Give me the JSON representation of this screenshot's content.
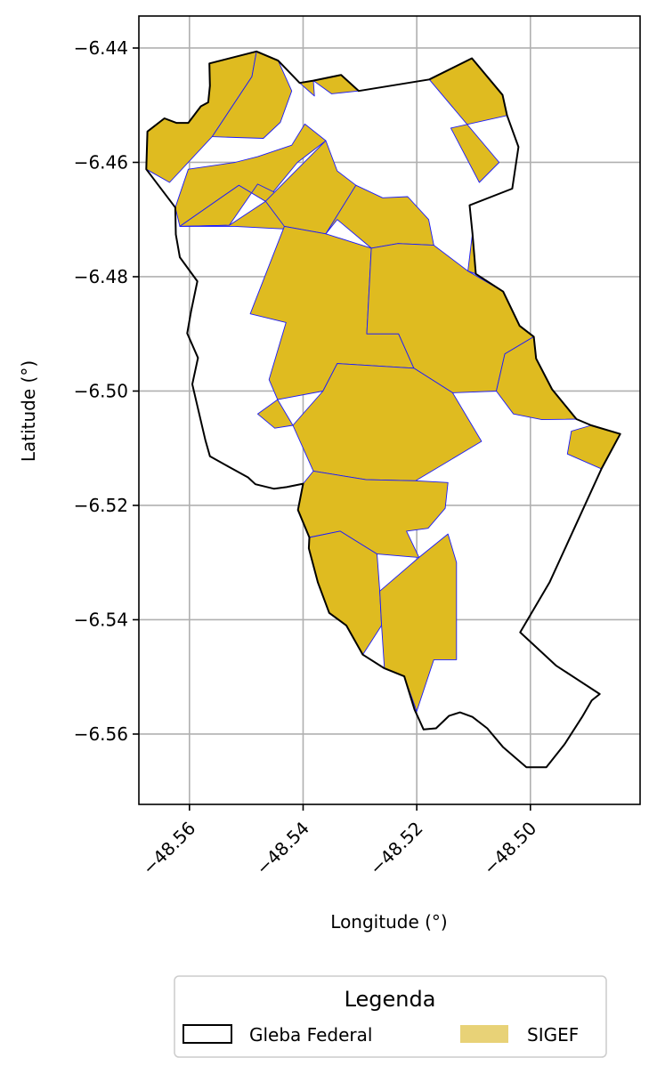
{
  "chart_data": {
    "type": "map",
    "xlabel": "Longitude (°)",
    "ylabel": "Latitude (°)",
    "xlim": [
      -48.5689,
      -48.4807
    ],
    "ylim": [
      -6.5723,
      -6.4344
    ],
    "x_ticks": [
      {
        "value": -48.56,
        "label": "−48.56"
      },
      {
        "value": -48.54,
        "label": "−48.54"
      },
      {
        "value": -48.52,
        "label": "−48.52"
      },
      {
        "value": -48.5,
        "label": "−48.50"
      }
    ],
    "y_ticks": [
      {
        "value": -6.44,
        "label": "−6.44"
      },
      {
        "value": -6.46,
        "label": "−6.46"
      },
      {
        "value": -6.48,
        "label": "−6.48"
      },
      {
        "value": -6.5,
        "label": "−6.50"
      },
      {
        "value": -6.52,
        "label": "−6.52"
      },
      {
        "value": -6.54,
        "label": "−6.54"
      },
      {
        "value": -6.56,
        "label": "−6.56"
      }
    ],
    "grid": true,
    "legend": {
      "title": "Legenda",
      "placement": "bottom-center",
      "entries": [
        {
          "label": "Gleba Federal",
          "style": "outline"
        },
        {
          "label": "SIGEF",
          "style": "fill"
        }
      ]
    },
    "colors": {
      "gleba_outline": "#000000",
      "sigef_fill": "#dfbb20",
      "sigef_edge": "#1a1aff",
      "sigef_legend_fill": "#e8d277",
      "grid": "#b0b0b0"
    },
    "gleba_federal": [
      [
        -48.5644,
        -6.4523
      ],
      [
        -48.5623,
        -6.4531
      ],
      [
        -48.5602,
        -6.4531
      ],
      [
        -48.558,
        -6.4502
      ],
      [
        -48.5567,
        -6.4495
      ],
      [
        -48.5564,
        -6.4466
      ],
      [
        -48.5565,
        -6.4427
      ],
      [
        -48.5482,
        -6.4406
      ],
      [
        -48.5444,
        -6.4422
      ],
      [
        -48.5406,
        -6.4461
      ],
      [
        -48.5382,
        -6.4457
      ],
      [
        -48.5333,
        -6.4447
      ],
      [
        -48.5302,
        -6.4475
      ],
      [
        -48.5178,
        -6.4455
      ],
      [
        -48.5103,
        -6.4418
      ],
      [
        -48.5049,
        -6.4482
      ],
      [
        -48.5041,
        -6.4518
      ],
      [
        -48.5021,
        -6.4573
      ],
      [
        -48.5032,
        -6.4646
      ],
      [
        -48.5107,
        -6.4675
      ],
      [
        -48.5102,
        -6.4724
      ],
      [
        -48.5096,
        -6.4795
      ],
      [
        -48.5048,
        -6.4826
      ],
      [
        -48.5019,
        -6.4886
      ],
      [
        -48.4994,
        -6.4905
      ],
      [
        -48.499,
        -6.4943
      ],
      [
        -48.4962,
        -6.4997
      ],
      [
        -48.4919,
        -6.5049
      ],
      [
        -48.4893,
        -6.506
      ],
      [
        -48.4842,
        -6.5075
      ],
      [
        -48.4875,
        -6.5136
      ],
      [
        -48.4966,
        -6.5334
      ],
      [
        -48.5018,
        -6.5422
      ],
      [
        -48.4955,
        -6.548
      ],
      [
        -48.4878,
        -6.553
      ],
      [
        -48.4892,
        -6.5541
      ],
      [
        -48.4909,
        -6.557
      ],
      [
        -48.494,
        -6.5618
      ],
      [
        -48.4972,
        -6.5658
      ],
      [
        -48.5007,
        -6.5658
      ],
      [
        -48.5048,
        -6.5623
      ],
      [
        -48.5076,
        -6.559
      ],
      [
        -48.5102,
        -6.557
      ],
      [
        -48.5124,
        -6.5562
      ],
      [
        -48.5143,
        -6.5568
      ],
      [
        -48.5166,
        -6.559
      ],
      [
        -48.5188,
        -6.5592
      ],
      [
        -48.5204,
        -6.5557
      ],
      [
        -48.5222,
        -6.5499
      ],
      [
        -48.5257,
        -6.5485
      ],
      [
        -48.5295,
        -6.5461
      ],
      [
        -48.5324,
        -6.541
      ],
      [
        -48.5354,
        -6.5388
      ],
      [
        -48.5374,
        -6.5335
      ],
      [
        -48.539,
        -6.5275
      ],
      [
        -48.5389,
        -6.5256
      ],
      [
        -48.5409,
        -6.5208
      ],
      [
        -48.54,
        -6.5162
      ],
      [
        -48.5429,
        -6.5168
      ],
      [
        -48.5451,
        -6.5171
      ],
      [
        -48.5484,
        -6.5163
      ],
      [
        -48.5497,
        -6.5151
      ],
      [
        -48.553,
        -6.5133
      ],
      [
        -48.5564,
        -6.5114
      ],
      [
        -48.5572,
        -6.5086
      ],
      [
        -48.5595,
        -6.4988
      ],
      [
        -48.5585,
        -6.4942
      ],
      [
        -48.5604,
        -6.4899
      ],
      [
        -48.5597,
        -6.486
      ],
      [
        -48.5586,
        -6.4808
      ],
      [
        -48.5617,
        -6.4766
      ],
      [
        -48.5624,
        -6.4726
      ],
      [
        -48.5625,
        -6.4679
      ],
      [
        -48.5676,
        -6.4612
      ],
      [
        -48.5674,
        -6.4546
      ],
      [
        -48.5644,
        -6.4523
      ]
    ],
    "sigef_parcels": [
      [
        [
          -48.5674,
          -6.4546
        ],
        [
          -48.5644,
          -6.4523
        ],
        [
          -48.5623,
          -6.4531
        ],
        [
          -48.5602,
          -6.4531
        ],
        [
          -48.558,
          -6.4502
        ],
        [
          -48.5567,
          -6.4495
        ],
        [
          -48.5564,
          -6.4466
        ],
        [
          -48.5565,
          -6.4427
        ],
        [
          -48.5482,
          -6.4406
        ],
        [
          -48.549,
          -6.445
        ],
        [
          -48.556,
          -6.4555
        ],
        [
          -48.5635,
          -6.4635
        ],
        [
          -48.5676,
          -6.4612
        ]
      ],
      [
        [
          -48.5482,
          -6.4406
        ],
        [
          -48.5444,
          -6.4422
        ],
        [
          -48.542,
          -6.4475
        ],
        [
          -48.544,
          -6.453
        ],
        [
          -48.547,
          -6.4558
        ],
        [
          -48.556,
          -6.4555
        ],
        [
          -48.549,
          -6.445
        ]
      ],
      [
        [
          -48.5625,
          -6.4679
        ],
        [
          -48.5602,
          -6.4612
        ],
        [
          -48.552,
          -6.46
        ],
        [
          -48.548,
          -6.459
        ],
        [
          -48.542,
          -6.457
        ],
        [
          -48.5397,
          -6.4533
        ],
        [
          -48.536,
          -6.4562
        ],
        [
          -48.541,
          -6.46
        ],
        [
          -48.5466,
          -6.4668
        ],
        [
          -48.5513,
          -6.464
        ],
        [
          -48.5617,
          -6.4712
        ]
      ],
      [
        [
          -48.5617,
          -6.4712
        ],
        [
          -48.5513,
          -6.464
        ],
        [
          -48.5466,
          -6.4668
        ],
        [
          -48.542,
          -6.471
        ],
        [
          -48.541,
          -6.4672
        ],
        [
          -48.548,
          -6.4638
        ],
        [
          -48.553,
          -6.471
        ],
        [
          -48.5617,
          -6.4712
        ]
      ],
      [
        [
          -48.5617,
          -6.4712
        ],
        [
          -48.553,
          -6.471
        ],
        [
          -48.5466,
          -6.4668
        ],
        [
          -48.541,
          -6.4672
        ],
        [
          -48.54,
          -6.4718
        ],
        [
          -48.546,
          -6.4715
        ],
        [
          -48.552,
          -6.4712
        ]
      ],
      [
        [
          -48.5466,
          -6.4668
        ],
        [
          -48.536,
          -6.4562
        ],
        [
          -48.534,
          -6.4615
        ],
        [
          -48.5307,
          -6.464
        ],
        [
          -48.536,
          -6.4725
        ],
        [
          -48.5433,
          -6.4712
        ],
        [
          -48.5466,
          -6.4668
        ]
      ],
      [
        [
          -48.5307,
          -6.464
        ],
        [
          -48.526,
          -6.4662
        ],
        [
          -48.5216,
          -6.466
        ],
        [
          -48.5179,
          -6.47
        ],
        [
          -48.517,
          -6.4745
        ],
        [
          -48.5233,
          -6.4742
        ],
        [
          -48.528,
          -6.475
        ],
        [
          -48.534,
          -6.47
        ],
        [
          -48.536,
          -6.4725
        ],
        [
          -48.5307,
          -6.464
        ]
      ],
      [
        [
          -48.5433,
          -6.4712
        ],
        [
          -48.536,
          -6.4725
        ],
        [
          -48.528,
          -6.475
        ],
        [
          -48.5288,
          -6.49
        ],
        [
          -48.5232,
          -6.49
        ],
        [
          -48.5205,
          -6.496
        ],
        [
          -48.534,
          -6.4952
        ],
        [
          -48.5365,
          -6.5
        ],
        [
          -48.5445,
          -6.5015
        ],
        [
          -48.546,
          -6.498
        ],
        [
          -48.543,
          -6.488
        ],
        [
          -48.5493,
          -6.4865
        ],
        [
          -48.5433,
          -6.4712
        ]
      ],
      [
        [
          -48.528,
          -6.475
        ],
        [
          -48.5233,
          -6.4742
        ],
        [
          -48.517,
          -6.4745
        ],
        [
          -48.511,
          -6.479
        ],
        [
          -48.5048,
          -6.4826
        ],
        [
          -48.5019,
          -6.4886
        ],
        [
          -48.4994,
          -6.4905
        ],
        [
          -48.5045,
          -6.4935
        ],
        [
          -48.506,
          -6.5
        ],
        [
          -48.5137,
          -6.5003
        ],
        [
          -48.5205,
          -6.496
        ],
        [
          -48.5232,
          -6.49
        ],
        [
          -48.5288,
          -6.49
        ],
        [
          -48.528,
          -6.475
        ]
      ],
      [
        [
          -48.5365,
          -6.5
        ],
        [
          -48.534,
          -6.4952
        ],
        [
          -48.5205,
          -6.496
        ],
        [
          -48.5137,
          -6.5003
        ],
        [
          -48.5086,
          -6.5088
        ],
        [
          -48.5202,
          -6.5157
        ],
        [
          -48.5289,
          -6.5155
        ],
        [
          -48.5382,
          -6.514
        ],
        [
          -48.5418,
          -6.506
        ],
        [
          -48.5365,
          -6.5
        ]
      ],
      [
        [
          -48.5418,
          -6.506
        ],
        [
          -48.5445,
          -6.5015
        ],
        [
          -48.548,
          -6.504
        ],
        [
          -48.545,
          -6.5065
        ],
        [
          -48.5418,
          -6.506
        ]
      ],
      [
        [
          -48.5382,
          -6.514
        ],
        [
          -48.5289,
          -6.5155
        ],
        [
          -48.5202,
          -6.5157
        ],
        [
          -48.5145,
          -6.516
        ],
        [
          -48.515,
          -6.5205
        ],
        [
          -48.518,
          -6.524
        ],
        [
          -48.5218,
          -6.5245
        ],
        [
          -48.5196,
          -6.5291
        ],
        [
          -48.521,
          -6.529
        ],
        [
          -48.527,
          -6.5285
        ],
        [
          -48.5335,
          -6.5245
        ],
        [
          -48.5389,
          -6.5256
        ],
        [
          -48.5409,
          -6.5208
        ],
        [
          -48.54,
          -6.5162
        ],
        [
          -48.5382,
          -6.514
        ]
      ],
      [
        [
          -48.5389,
          -6.5256
        ],
        [
          -48.5335,
          -6.5245
        ],
        [
          -48.527,
          -6.5285
        ],
        [
          -48.5265,
          -6.535
        ],
        [
          -48.5262,
          -6.541
        ],
        [
          -48.5295,
          -6.5461
        ],
        [
          -48.5324,
          -6.541
        ],
        [
          -48.5354,
          -6.5388
        ],
        [
          -48.5374,
          -6.5335
        ],
        [
          -48.539,
          -6.5275
        ]
      ],
      [
        [
          -48.5196,
          -6.5291
        ],
        [
          -48.5145,
          -6.525
        ],
        [
          -48.513,
          -6.53
        ],
        [
          -48.513,
          -6.547
        ],
        [
          -48.517,
          -6.547
        ],
        [
          -48.52,
          -6.556
        ],
        [
          -48.5222,
          -6.5499
        ],
        [
          -48.5257,
          -6.5485
        ],
        [
          -48.5262,
          -6.541
        ],
        [
          -48.5265,
          -6.535
        ],
        [
          -48.5196,
          -6.5291
        ]
      ],
      [
        [
          -48.5102,
          -6.4724
        ],
        [
          -48.5096,
          -6.4795
        ],
        [
          -48.511,
          -6.479
        ],
        [
          -48.5102,
          -6.4724
        ]
      ],
      [
        [
          -48.506,
          -6.5
        ],
        [
          -48.5045,
          -6.4935
        ],
        [
          -48.4994,
          -6.4905
        ],
        [
          -48.499,
          -6.4943
        ],
        [
          -48.4962,
          -6.4997
        ],
        [
          -48.4919,
          -6.5049
        ],
        [
          -48.498,
          -6.505
        ],
        [
          -48.503,
          -6.504
        ],
        [
          -48.506,
          -6.5
        ]
      ],
      [
        [
          -48.4893,
          -6.506
        ],
        [
          -48.4842,
          -6.5075
        ],
        [
          -48.4875,
          -6.5136
        ],
        [
          -48.4935,
          -6.511
        ],
        [
          -48.4928,
          -6.507
        ]
      ],
      [
        [
          -48.5178,
          -6.4455
        ],
        [
          -48.5103,
          -6.4418
        ],
        [
          -48.5049,
          -6.4482
        ],
        [
          -48.5041,
          -6.4518
        ],
        [
          -48.514,
          -6.454
        ],
        [
          -48.509,
          -6.4635
        ],
        [
          -48.5055,
          -6.46
        ],
        [
          -48.5178,
          -6.4455
        ]
      ],
      [
        [
          -48.5382,
          -6.4457
        ],
        [
          -48.5333,
          -6.4447
        ],
        [
          -48.5302,
          -6.4475
        ],
        [
          -48.535,
          -6.448
        ],
        [
          -48.5382,
          -6.4457
        ]
      ],
      [
        [
          -48.5406,
          -6.4461
        ],
        [
          -48.5382,
          -6.4457
        ],
        [
          -48.538,
          -6.4484
        ],
        [
          -48.5406,
          -6.4461
        ]
      ]
    ]
  }
}
